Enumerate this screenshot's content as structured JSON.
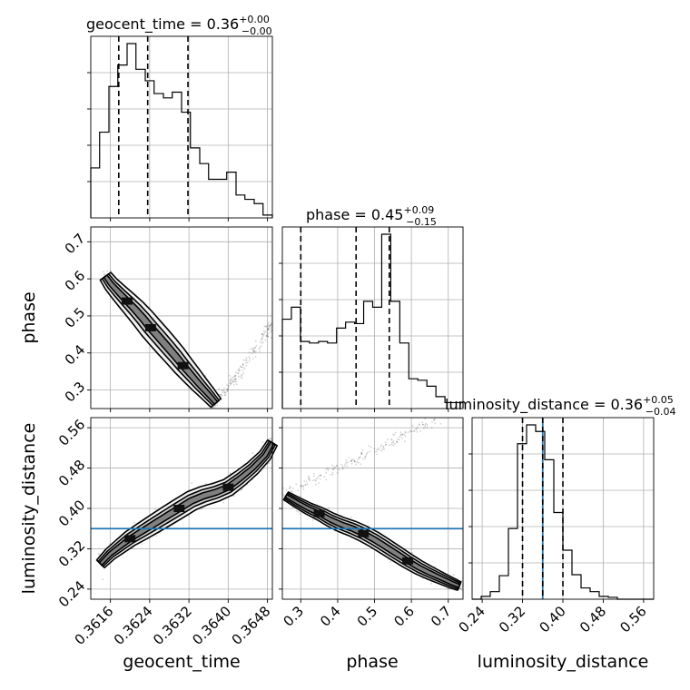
{
  "figure": {
    "type": "corner-plot"
  },
  "chart_data": {
    "type": "corner",
    "parameters": [
      {
        "name": "geocent_time",
        "label": "geocent_time",
        "range": [
          0.3612,
          0.3649
        ],
        "ticks": [
          "0.3616",
          "0.3624",
          "0.3632",
          "0.3640",
          "0.3648"
        ],
        "tick_values": [
          0.3616,
          0.3624,
          0.3632,
          0.364,
          0.3648
        ],
        "title": {
          "text": "geocent_time = 0.36",
          "sup": "+0.00",
          "sub": "−0.00"
        },
        "quantiles": [
          0.36177,
          0.36236,
          0.36318
        ],
        "truth": null
      },
      {
        "name": "phase",
        "label": "phase",
        "range": [
          0.25,
          0.74
        ],
        "ticks": [
          "0.3",
          "0.4",
          "0.5",
          "0.6",
          "0.7"
        ],
        "tick_values": [
          0.3,
          0.4,
          0.5,
          0.6,
          0.7
        ],
        "y_ticks": [
          "0.3",
          "0.4",
          "0.5",
          "0.6",
          "0.7"
        ],
        "title": {
          "text": "phase = 0.45",
          "sup": "+0.09",
          "sub": "−0.15"
        },
        "quantiles": [
          0.3,
          0.45,
          0.54
        ],
        "truth": null
      },
      {
        "name": "luminosity_distance",
        "label": "luminosity_distance",
        "range": [
          0.22,
          0.58
        ],
        "ticks": [
          "0.24",
          "0.32",
          "0.40",
          "0.48",
          "0.56"
        ],
        "tick_values": [
          0.24,
          0.32,
          0.4,
          0.48,
          0.56
        ],
        "y_ticks": [
          "0.24",
          "0.32",
          "0.40",
          "0.48",
          "0.56"
        ],
        "title": {
          "text": "luminosity_distance = 0.36",
          "sup": "+0.05",
          "sub": "−0.04"
        },
        "quantiles": [
          0.32,
          0.36,
          0.4
        ],
        "truth": 0.36
      }
    ],
    "histograms": [
      {
        "param": "geocent_time",
        "edges": [
          0.3612,
          0.36138,
          0.36157,
          0.36175,
          0.36194,
          0.36212,
          0.36231,
          0.36249,
          0.36268,
          0.36286,
          0.36305,
          0.36323,
          0.36342,
          0.3636,
          0.36379,
          0.36397,
          0.36416,
          0.36434,
          0.36453,
          0.36471,
          0.3649
        ],
        "counts": [
          35,
          60,
          92,
          107,
          122,
          104,
          96,
          87,
          84,
          88,
          74,
          49,
          38,
          27,
          27,
          32,
          16,
          13,
          10,
          2
        ]
      },
      {
        "param": "phase",
        "edges": [
          0.25,
          0.2745,
          0.299,
          0.3235,
          0.348,
          0.3725,
          0.397,
          0.4215,
          0.446,
          0.4705,
          0.495,
          0.5195,
          0.544,
          0.5685,
          0.593,
          0.6175,
          0.642,
          0.6665,
          0.691,
          0.7155,
          0.74
        ],
        "counts": [
          60,
          68,
          45,
          44,
          45,
          44,
          54,
          58,
          57,
          72,
          68,
          117,
          72,
          44,
          20,
          19,
          15,
          8,
          4,
          4
        ]
      },
      {
        "param": "luminosity_distance",
        "edges": [
          0.22,
          0.238,
          0.256,
          0.274,
          0.292,
          0.31,
          0.328,
          0.346,
          0.364,
          0.382,
          0.4,
          0.418,
          0.436,
          0.454,
          0.472,
          0.49,
          0.508,
          0.526,
          0.544,
          0.562,
          0.58
        ],
        "counts": [
          0,
          3,
          8,
          25,
          75,
          165,
          185,
          178,
          148,
          92,
          52,
          26,
          12,
          8,
          3,
          2,
          0,
          0,
          0,
          0
        ]
      }
    ],
    "pairs": [
      {
        "x": "geocent_time",
        "y": "phase",
        "ridge": [
          [
            0.3615,
            0.607
          ],
          [
            0.36162,
            0.585
          ],
          [
            0.36178,
            0.562
          ],
          [
            0.36194,
            0.54
          ],
          [
            0.3621,
            0.518
          ],
          [
            0.36226,
            0.494
          ],
          [
            0.36242,
            0.468
          ],
          [
            0.36258,
            0.444
          ],
          [
            0.36275,
            0.418
          ],
          [
            0.36292,
            0.392
          ],
          [
            0.36308,
            0.366
          ],
          [
            0.36325,
            0.34
          ],
          [
            0.36342,
            0.314
          ],
          [
            0.3636,
            0.288
          ],
          [
            0.36375,
            0.265
          ]
        ],
        "branch": [
          [
            0.36375,
            0.27
          ],
          [
            0.36395,
            0.3
          ],
          [
            0.36415,
            0.335
          ],
          [
            0.36435,
            0.37
          ],
          [
            0.36455,
            0.41
          ],
          [
            0.36475,
            0.45
          ],
          [
            0.3649,
            0.48
          ]
        ]
      },
      {
        "x": "geocent_time",
        "y": "luminosity_distance",
        "ridge": [
          [
            0.3614,
            0.29
          ],
          [
            0.3616,
            0.31
          ],
          [
            0.3618,
            0.325
          ],
          [
            0.362,
            0.34
          ],
          [
            0.36225,
            0.355
          ],
          [
            0.3625,
            0.37
          ],
          [
            0.36275,
            0.385
          ],
          [
            0.363,
            0.4
          ],
          [
            0.36325,
            0.415
          ],
          [
            0.3635,
            0.425
          ],
          [
            0.36375,
            0.432
          ],
          [
            0.364,
            0.442
          ],
          [
            0.36425,
            0.46
          ],
          [
            0.3645,
            0.48
          ],
          [
            0.36475,
            0.505
          ],
          [
            0.3649,
            0.53
          ]
        ]
      },
      {
        "x": "phase",
        "y": "luminosity_distance",
        "ridge": [
          [
            0.26,
            0.425
          ],
          [
            0.29,
            0.412
          ],
          [
            0.32,
            0.4
          ],
          [
            0.35,
            0.39
          ],
          [
            0.38,
            0.378
          ],
          [
            0.41,
            0.368
          ],
          [
            0.44,
            0.36
          ],
          [
            0.47,
            0.35
          ],
          [
            0.5,
            0.338
          ],
          [
            0.53,
            0.324
          ],
          [
            0.56,
            0.31
          ],
          [
            0.59,
            0.296
          ],
          [
            0.62,
            0.283
          ],
          [
            0.65,
            0.272
          ],
          [
            0.68,
            0.262
          ],
          [
            0.71,
            0.252
          ],
          [
            0.73,
            0.246
          ]
        ],
        "branch": [
          [
            0.26,
            0.432
          ],
          [
            0.32,
            0.452
          ],
          [
            0.38,
            0.472
          ],
          [
            0.44,
            0.494
          ],
          [
            0.5,
            0.515
          ],
          [
            0.56,
            0.538
          ],
          [
            0.62,
            0.56
          ],
          [
            0.66,
            0.575
          ]
        ]
      }
    ],
    "truth_color": "#1f77b4",
    "line_color": "#000000",
    "grid": true
  }
}
